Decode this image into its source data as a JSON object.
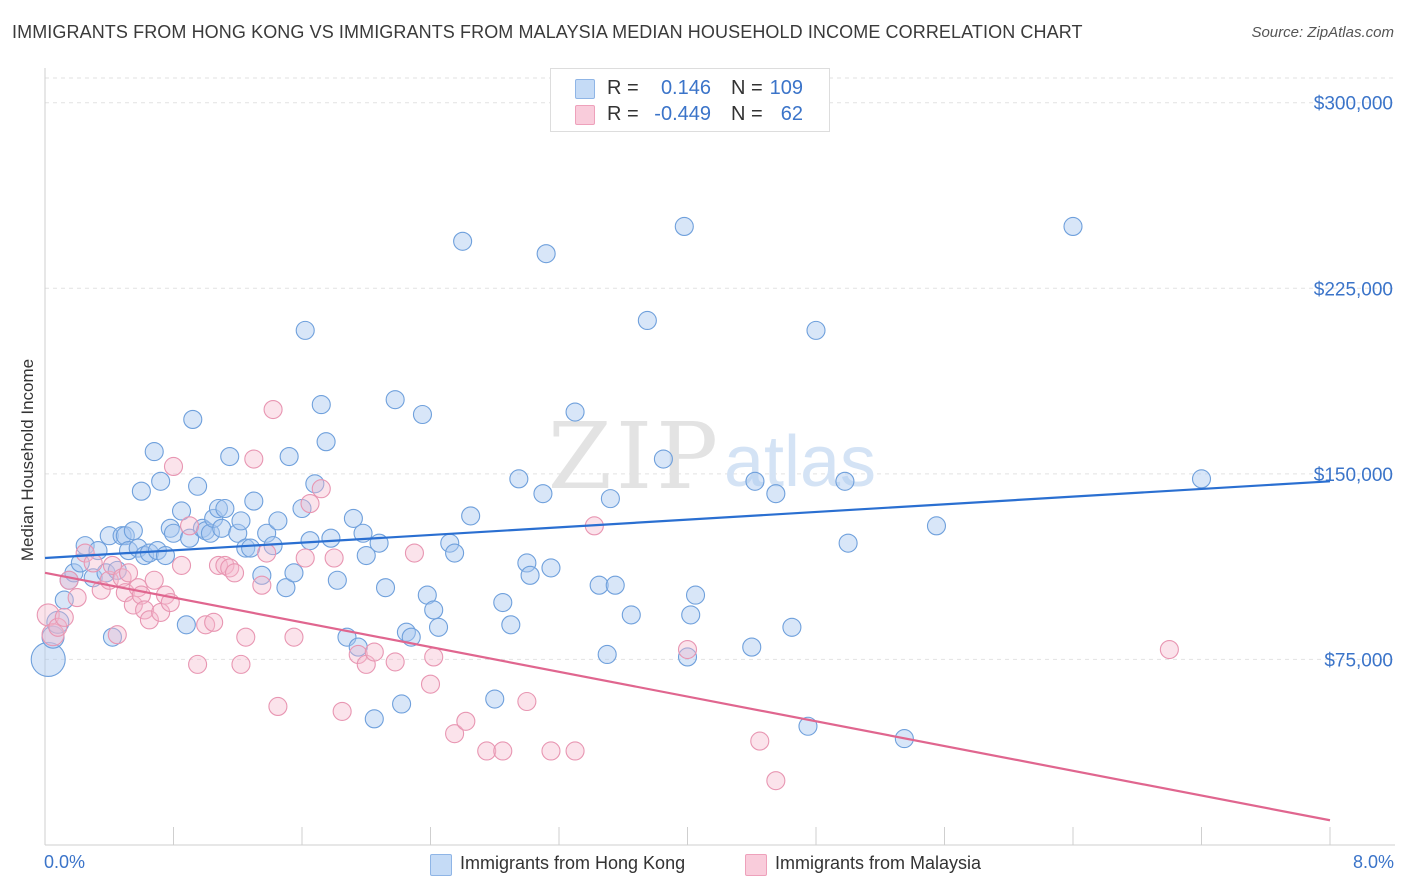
{
  "title": "IMMIGRANTS FROM HONG KONG VS IMMIGRANTS FROM MALAYSIA MEDIAN HOUSEHOLD INCOME CORRELATION CHART",
  "source": "Source: ZipAtlas.com",
  "watermark": {
    "zip": "ZIP",
    "atlas": "atlas"
  },
  "stats": {
    "rows": [
      {
        "r_label": "R =",
        "r_value": "0.146",
        "n_label": "N =",
        "n_value": "109",
        "color": "#a9c8f0"
      },
      {
        "r_label": "R =",
        "r_value": "-0.449",
        "n_label": "N =",
        "n_value": "62",
        "color": "#f5b8cc"
      }
    ]
  },
  "legend": {
    "items": [
      {
        "label": "Immigrants from Hong Kong",
        "color": "#a9c8f0"
      },
      {
        "label": "Immigrants from Malaysia",
        "color": "#f5b8cc"
      }
    ]
  },
  "chart_data": {
    "type": "scatter",
    "title": "IMMIGRANTS FROM HONG KONG VS IMMIGRANTS FROM MALAYSIA MEDIAN HOUSEHOLD INCOME CORRELATION CHART",
    "xlabel": "",
    "ylabel": "Median Household Income",
    "xlim": [
      0,
      8
    ],
    "ylim": [
      0,
      310000
    ],
    "x_tick_labels": [
      "0.0%",
      "8.0%"
    ],
    "y_ticks": [
      75000,
      150000,
      225000,
      300000
    ],
    "y_tick_labels": [
      "$75,000",
      "$150,000",
      "$225,000",
      "$300,000"
    ],
    "grid": true,
    "legend_position": "bottom",
    "colors": {
      "hong_kong_fill": "#a9c8f0",
      "hong_kong_line": "#2a6fd1",
      "malaysia_fill": "#f5b8cc",
      "malaysia_line": "#e0668f",
      "tick_text": "#3b74c9"
    },
    "series": [
      {
        "name": "Immigrants from Hong Kong",
        "trend": {
          "x": [
            0,
            8
          ],
          "y": [
            116000,
            147000
          ]
        },
        "points": [
          {
            "x": 0.02,
            "y": 75000,
            "s": 3
          },
          {
            "x": 0.05,
            "y": 84000,
            "s": 2
          },
          {
            "x": 0.08,
            "y": 90000,
            "s": 2
          },
          {
            "x": 0.12,
            "y": 99000,
            "s": 1
          },
          {
            "x": 0.15,
            "y": 107000,
            "s": 1
          },
          {
            "x": 0.18,
            "y": 110000,
            "s": 1
          },
          {
            "x": 0.22,
            "y": 114000,
            "s": 1
          },
          {
            "x": 0.25,
            "y": 121000,
            "s": 1
          },
          {
            "x": 0.3,
            "y": 108000,
            "s": 1
          },
          {
            "x": 0.33,
            "y": 119000,
            "s": 1
          },
          {
            "x": 0.38,
            "y": 110000,
            "s": 1
          },
          {
            "x": 0.4,
            "y": 125000,
            "s": 1
          },
          {
            "x": 0.42,
            "y": 84000,
            "s": 1
          },
          {
            "x": 0.45,
            "y": 111000,
            "s": 1
          },
          {
            "x": 0.48,
            "y": 125000,
            "s": 1
          },
          {
            "x": 0.5,
            "y": 125000,
            "s": 1
          },
          {
            "x": 0.52,
            "y": 119000,
            "s": 1
          },
          {
            "x": 0.55,
            "y": 127000,
            "s": 1
          },
          {
            "x": 0.58,
            "y": 120000,
            "s": 1
          },
          {
            "x": 0.6,
            "y": 143000,
            "s": 1
          },
          {
            "x": 0.62,
            "y": 117000,
            "s": 1
          },
          {
            "x": 0.65,
            "y": 118000,
            "s": 1
          },
          {
            "x": 0.68,
            "y": 159000,
            "s": 1
          },
          {
            "x": 0.7,
            "y": 119000,
            "s": 1
          },
          {
            "x": 0.72,
            "y": 147000,
            "s": 1
          },
          {
            "x": 0.75,
            "y": 117000,
            "s": 1
          },
          {
            "x": 0.78,
            "y": 128000,
            "s": 1
          },
          {
            "x": 0.8,
            "y": 126000,
            "s": 1
          },
          {
            "x": 0.85,
            "y": 135000,
            "s": 1
          },
          {
            "x": 0.88,
            "y": 89000,
            "s": 1
          },
          {
            "x": 0.9,
            "y": 124000,
            "s": 1
          },
          {
            "x": 0.92,
            "y": 172000,
            "s": 1
          },
          {
            "x": 0.95,
            "y": 145000,
            "s": 1
          },
          {
            "x": 0.98,
            "y": 128000,
            "s": 1
          },
          {
            "x": 1.0,
            "y": 127000,
            "s": 1
          },
          {
            "x": 1.03,
            "y": 126000,
            "s": 1
          },
          {
            "x": 1.05,
            "y": 132000,
            "s": 1
          },
          {
            "x": 1.08,
            "y": 136000,
            "s": 1
          },
          {
            "x": 1.1,
            "y": 128000,
            "s": 1
          },
          {
            "x": 1.12,
            "y": 136000,
            "s": 1
          },
          {
            "x": 1.15,
            "y": 157000,
            "s": 1
          },
          {
            "x": 1.2,
            "y": 126000,
            "s": 1
          },
          {
            "x": 1.22,
            "y": 131000,
            "s": 1
          },
          {
            "x": 1.25,
            "y": 120000,
            "s": 1
          },
          {
            "x": 1.28,
            "y": 120000,
            "s": 1
          },
          {
            "x": 1.3,
            "y": 139000,
            "s": 1
          },
          {
            "x": 1.35,
            "y": 109000,
            "s": 1
          },
          {
            "x": 1.38,
            "y": 126000,
            "s": 1
          },
          {
            "x": 1.42,
            "y": 121000,
            "s": 1
          },
          {
            "x": 1.45,
            "y": 131000,
            "s": 1
          },
          {
            "x": 1.5,
            "y": 104000,
            "s": 1
          },
          {
            "x": 1.52,
            "y": 157000,
            "s": 1
          },
          {
            "x": 1.55,
            "y": 110000,
            "s": 1
          },
          {
            "x": 1.6,
            "y": 136000,
            "s": 1
          },
          {
            "x": 1.62,
            "y": 208000,
            "s": 1
          },
          {
            "x": 1.65,
            "y": 123000,
            "s": 1
          },
          {
            "x": 1.68,
            "y": 146000,
            "s": 1
          },
          {
            "x": 1.72,
            "y": 178000,
            "s": 1
          },
          {
            "x": 1.75,
            "y": 163000,
            "s": 1
          },
          {
            "x": 1.78,
            "y": 124000,
            "s": 1
          },
          {
            "x": 1.82,
            "y": 107000,
            "s": 1
          },
          {
            "x": 1.88,
            "y": 84000,
            "s": 1
          },
          {
            "x": 1.92,
            "y": 132000,
            "s": 1
          },
          {
            "x": 1.95,
            "y": 80000,
            "s": 1
          },
          {
            "x": 1.98,
            "y": 126000,
            "s": 1
          },
          {
            "x": 2.0,
            "y": 117000,
            "s": 1
          },
          {
            "x": 2.05,
            "y": 51000,
            "s": 1
          },
          {
            "x": 2.08,
            "y": 122000,
            "s": 1
          },
          {
            "x": 2.12,
            "y": 104000,
            "s": 1
          },
          {
            "x": 2.18,
            "y": 180000,
            "s": 1
          },
          {
            "x": 2.22,
            "y": 57000,
            "s": 1
          },
          {
            "x": 2.25,
            "y": 86000,
            "s": 1
          },
          {
            "x": 2.28,
            "y": 84000,
            "s": 1
          },
          {
            "x": 2.35,
            "y": 174000,
            "s": 1
          },
          {
            "x": 2.38,
            "y": 101000,
            "s": 1
          },
          {
            "x": 2.42,
            "y": 95000,
            "s": 1
          },
          {
            "x": 2.45,
            "y": 88000,
            "s": 1
          },
          {
            "x": 2.52,
            "y": 122000,
            "s": 1
          },
          {
            "x": 2.55,
            "y": 118000,
            "s": 1
          },
          {
            "x": 2.6,
            "y": 244000,
            "s": 1
          },
          {
            "x": 2.65,
            "y": 133000,
            "s": 1
          },
          {
            "x": 2.8,
            "y": 59000,
            "s": 1
          },
          {
            "x": 2.85,
            "y": 98000,
            "s": 1
          },
          {
            "x": 2.9,
            "y": 89000,
            "s": 1
          },
          {
            "x": 2.95,
            "y": 148000,
            "s": 1
          },
          {
            "x": 3.0,
            "y": 114000,
            "s": 1
          },
          {
            "x": 3.02,
            "y": 109000,
            "s": 1
          },
          {
            "x": 3.1,
            "y": 142000,
            "s": 1
          },
          {
            "x": 3.12,
            "y": 239000,
            "s": 1
          },
          {
            "x": 3.15,
            "y": 112000,
            "s": 1
          },
          {
            "x": 3.3,
            "y": 175000,
            "s": 1
          },
          {
            "x": 3.45,
            "y": 105000,
            "s": 1
          },
          {
            "x": 3.5,
            "y": 77000,
            "s": 1
          },
          {
            "x": 3.52,
            "y": 140000,
            "s": 1
          },
          {
            "x": 3.55,
            "y": 105000,
            "s": 1
          },
          {
            "x": 3.65,
            "y": 93000,
            "s": 1
          },
          {
            "x": 3.75,
            "y": 212000,
            "s": 1
          },
          {
            "x": 3.85,
            "y": 156000,
            "s": 1
          },
          {
            "x": 3.98,
            "y": 250000,
            "s": 1
          },
          {
            "x": 4.0,
            "y": 76000,
            "s": 1
          },
          {
            "x": 4.02,
            "y": 93000,
            "s": 1
          },
          {
            "x": 4.05,
            "y": 101000,
            "s": 1
          },
          {
            "x": 4.4,
            "y": 80000,
            "s": 1
          },
          {
            "x": 4.42,
            "y": 147000,
            "s": 1
          },
          {
            "x": 4.55,
            "y": 142000,
            "s": 1
          },
          {
            "x": 4.65,
            "y": 88000,
            "s": 1
          },
          {
            "x": 4.75,
            "y": 48000,
            "s": 1
          },
          {
            "x": 4.8,
            "y": 208000,
            "s": 1
          },
          {
            "x": 4.98,
            "y": 147000,
            "s": 1
          },
          {
            "x": 5.0,
            "y": 122000,
            "s": 1
          },
          {
            "x": 5.35,
            "y": 43000,
            "s": 1
          },
          {
            "x": 5.55,
            "y": 129000,
            "s": 1
          },
          {
            "x": 6.4,
            "y": 250000,
            "s": 1
          },
          {
            "x": 7.2,
            "y": 148000,
            "s": 1
          }
        ]
      },
      {
        "name": "Immigrants from Malaysia",
        "trend": {
          "x": [
            0,
            8
          ],
          "y": [
            110000,
            10000
          ]
        },
        "points": [
          {
            "x": 0.02,
            "y": 93000,
            "s": 2
          },
          {
            "x": 0.05,
            "y": 85000,
            "s": 2
          },
          {
            "x": 0.08,
            "y": 88000,
            "s": 1
          },
          {
            "x": 0.12,
            "y": 92000,
            "s": 1
          },
          {
            "x": 0.15,
            "y": 107000,
            "s": 1
          },
          {
            "x": 0.2,
            "y": 100000,
            "s": 1
          },
          {
            "x": 0.25,
            "y": 118000,
            "s": 1
          },
          {
            "x": 0.3,
            "y": 114000,
            "s": 1
          },
          {
            "x": 0.35,
            "y": 103000,
            "s": 1
          },
          {
            "x": 0.4,
            "y": 107000,
            "s": 1
          },
          {
            "x": 0.42,
            "y": 113000,
            "s": 1
          },
          {
            "x": 0.45,
            "y": 85000,
            "s": 1
          },
          {
            "x": 0.48,
            "y": 108000,
            "s": 1
          },
          {
            "x": 0.5,
            "y": 102000,
            "s": 1
          },
          {
            "x": 0.52,
            "y": 110000,
            "s": 1
          },
          {
            "x": 0.55,
            "y": 97000,
            "s": 1
          },
          {
            "x": 0.58,
            "y": 104000,
            "s": 1
          },
          {
            "x": 0.6,
            "y": 101000,
            "s": 1
          },
          {
            "x": 0.62,
            "y": 95000,
            "s": 1
          },
          {
            "x": 0.65,
            "y": 91000,
            "s": 1
          },
          {
            "x": 0.68,
            "y": 107000,
            "s": 1
          },
          {
            "x": 0.72,
            "y": 94000,
            "s": 1
          },
          {
            "x": 0.75,
            "y": 101000,
            "s": 1
          },
          {
            "x": 0.78,
            "y": 98000,
            "s": 1
          },
          {
            "x": 0.8,
            "y": 153000,
            "s": 1
          },
          {
            "x": 0.85,
            "y": 113000,
            "s": 1
          },
          {
            "x": 0.9,
            "y": 129000,
            "s": 1
          },
          {
            "x": 0.95,
            "y": 73000,
            "s": 1
          },
          {
            "x": 1.0,
            "y": 89000,
            "s": 1
          },
          {
            "x": 1.05,
            "y": 90000,
            "s": 1
          },
          {
            "x": 1.08,
            "y": 113000,
            "s": 1
          },
          {
            "x": 1.12,
            "y": 113000,
            "s": 1
          },
          {
            "x": 1.15,
            "y": 112000,
            "s": 1
          },
          {
            "x": 1.18,
            "y": 110000,
            "s": 1
          },
          {
            "x": 1.22,
            "y": 73000,
            "s": 1
          },
          {
            "x": 1.25,
            "y": 84000,
            "s": 1
          },
          {
            "x": 1.3,
            "y": 156000,
            "s": 1
          },
          {
            "x": 1.35,
            "y": 105000,
            "s": 1
          },
          {
            "x": 1.38,
            "y": 118000,
            "s": 1
          },
          {
            "x": 1.42,
            "y": 176000,
            "s": 1
          },
          {
            "x": 1.45,
            "y": 56000,
            "s": 1
          },
          {
            "x": 1.55,
            "y": 84000,
            "s": 1
          },
          {
            "x": 1.62,
            "y": 116000,
            "s": 1
          },
          {
            "x": 1.65,
            "y": 138000,
            "s": 1
          },
          {
            "x": 1.72,
            "y": 144000,
            "s": 1
          },
          {
            "x": 1.8,
            "y": 116000,
            "s": 1
          },
          {
            "x": 1.85,
            "y": 54000,
            "s": 1
          },
          {
            "x": 1.95,
            "y": 77000,
            "s": 1
          },
          {
            "x": 2.0,
            "y": 73000,
            "s": 1
          },
          {
            "x": 2.05,
            "y": 78000,
            "s": 1
          },
          {
            "x": 2.18,
            "y": 74000,
            "s": 1
          },
          {
            "x": 2.3,
            "y": 118000,
            "s": 1
          },
          {
            "x": 2.4,
            "y": 65000,
            "s": 1
          },
          {
            "x": 2.42,
            "y": 76000,
            "s": 1
          },
          {
            "x": 2.55,
            "y": 45000,
            "s": 1
          },
          {
            "x": 2.62,
            "y": 50000,
            "s": 1
          },
          {
            "x": 2.75,
            "y": 38000,
            "s": 1
          },
          {
            "x": 2.85,
            "y": 38000,
            "s": 1
          },
          {
            "x": 3.0,
            "y": 58000,
            "s": 1
          },
          {
            "x": 3.15,
            "y": 38000,
            "s": 1
          },
          {
            "x": 3.3,
            "y": 38000,
            "s": 1
          },
          {
            "x": 3.42,
            "y": 129000,
            "s": 1
          },
          {
            "x": 4.0,
            "y": 79000,
            "s": 1
          },
          {
            "x": 4.45,
            "y": 42000,
            "s": 1
          },
          {
            "x": 4.55,
            "y": 26000,
            "s": 1
          },
          {
            "x": 7.0,
            "y": 79000,
            "s": 1
          }
        ]
      }
    ]
  }
}
